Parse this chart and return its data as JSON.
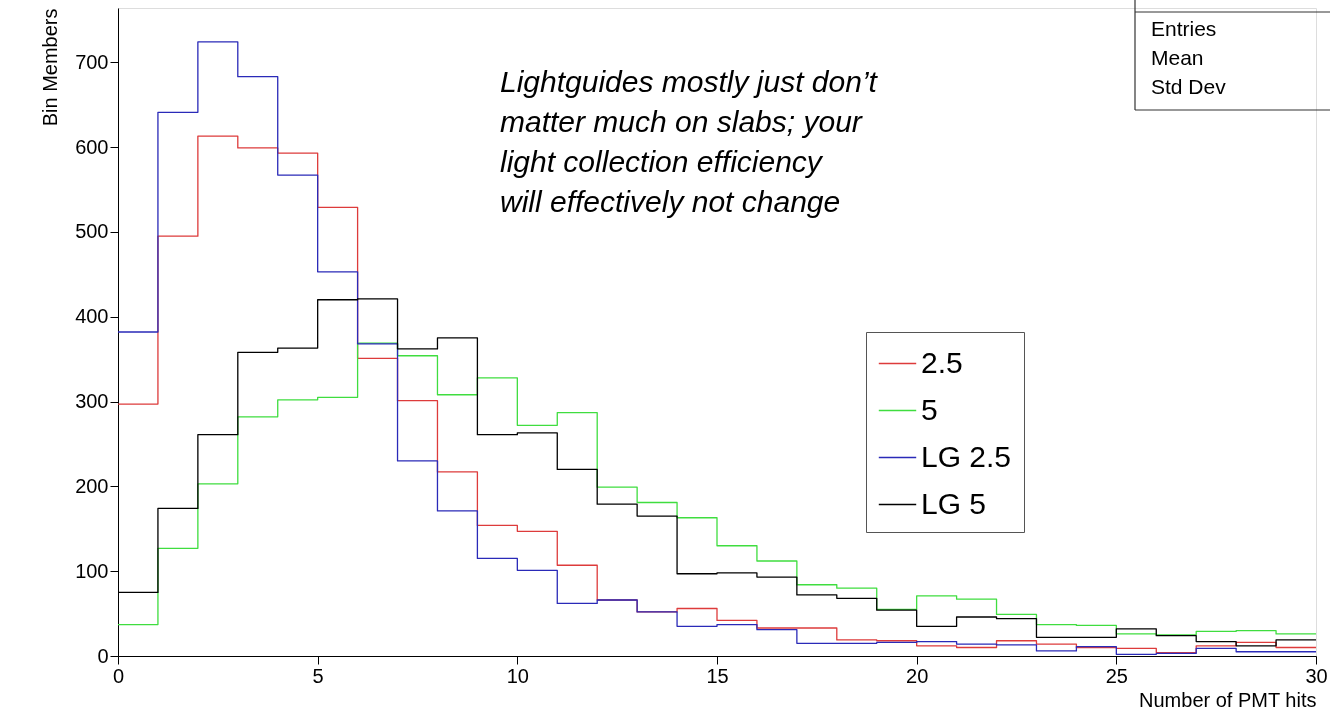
{
  "chart_data": {
    "type": "histogram",
    "xlabel": "Number of PMT hits",
    "ylabel": "Bin Members",
    "bins": [
      0,
      1,
      2,
      3,
      4,
      5,
      6,
      7,
      8,
      9,
      10,
      11,
      12,
      13,
      14,
      15,
      16,
      17,
      18,
      19,
      20,
      21,
      22,
      23,
      24,
      25,
      26,
      27,
      28,
      29,
      30
    ],
    "series": [
      {
        "name": "2.5",
        "color": "#dd3b3b",
        "values": [
          297,
          495,
          613,
          599,
          593,
          529,
          351,
          301,
          217,
          154,
          147,
          107,
          66,
          52,
          56,
          42,
          33,
          33,
          19,
          18,
          12,
          10,
          18,
          14,
          10,
          9,
          4,
          12,
          16,
          10
        ]
      },
      {
        "name": "5",
        "color": "#3fdd3f",
        "values": [
          37,
          127,
          203,
          282,
          302,
          305,
          369,
          354,
          308,
          328,
          272,
          287,
          199,
          181,
          163,
          130,
          112,
          84,
          80,
          55,
          71,
          67,
          49,
          37,
          36,
          26,
          25,
          29,
          30,
          26
        ]
      },
      {
        "name": "LG 2.5",
        "color": "#2a2ab8",
        "values": [
          382,
          641,
          724,
          683,
          567,
          453,
          368,
          230,
          171,
          115,
          101,
          62,
          66,
          52,
          35,
          37,
          31,
          15,
          15,
          16,
          17,
          14,
          13,
          6,
          11,
          2,
          3,
          9,
          5,
          5
        ]
      },
      {
        "name": "LG 5",
        "color": "#000000",
        "values": [
          75,
          174,
          261,
          358,
          363,
          420,
          421,
          362,
          375,
          261,
          263,
          220,
          179,
          165,
          97,
          98,
          93,
          72,
          68,
          54,
          35,
          46,
          44,
          22,
          22,
          32,
          24,
          17,
          12,
          19
        ]
      }
    ],
    "xlim": [
      0,
      30
    ],
    "xticks": [
      0,
      5,
      10,
      15,
      20,
      25,
      30
    ],
    "ylim": [
      0,
      764
    ],
    "yticks": [
      0,
      100,
      200,
      300,
      400,
      500,
      600,
      700
    ],
    "grid": false,
    "legend": "right",
    "annotations": [
      "Lightguides mostly just don’t matter much on slabs; your light collection efficiency will effectively not change",
      "Entries",
      "Mean",
      "Std Dev"
    ]
  }
}
